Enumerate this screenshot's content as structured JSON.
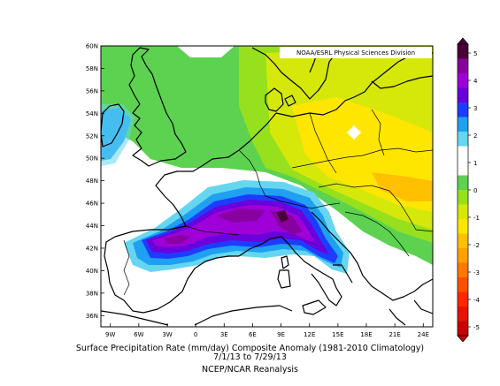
{
  "map": {
    "credit": "NOAA/ESRL Physical Sciences Division",
    "lat_labels": [
      "60N",
      "58N",
      "56N",
      "54N",
      "52N",
      "50N",
      "48N",
      "46N",
      "44N",
      "42N",
      "40N",
      "38N",
      "36N"
    ],
    "lon_labels": [
      "9W",
      "6W",
      "3W",
      "0",
      "3E",
      "6E",
      "9E",
      "12E",
      "15E",
      "18E",
      "21E",
      "24E"
    ],
    "colorbar_labels": [
      "5",
      "4",
      "3",
      "2",
      "1",
      "0",
      "-1",
      "-2",
      "-3",
      "-4",
      "-5"
    ],
    "colorbar_colors": [
      "#4a0038",
      "#8800a0",
      "#a000d8",
      "#6a00dc",
      "#1e3cff",
      "#1fa0f0",
      "#66d6f0",
      "#ffffff",
      "#ffffff",
      "#5cd250",
      "#96e01e",
      "#d6e80a",
      "#ffe600",
      "#ffc000",
      "#ffa000",
      "#ff7800",
      "#ff5000",
      "#ff2800",
      "#e61400",
      "#c80000"
    ],
    "extent": {
      "lon": [
        -10,
        25
      ],
      "lat": [
        35,
        60
      ]
    }
  },
  "caption": {
    "line1": "Surface Precipitation Rate (mm/day) Composite Anomaly (1981-2010 Climatology)",
    "line2": "7/1/13  to 7/29/13",
    "line3": "NCEP/NCAR Reanalysis"
  }
}
